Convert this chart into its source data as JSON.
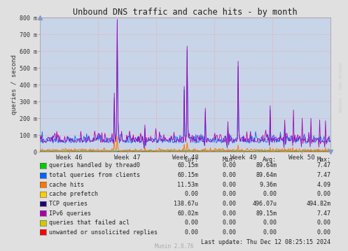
{
  "title": "Unbound DNS traffic and cache hits - by month",
  "ylabel": "queries / second",
  "background_color": "#e0e0e0",
  "plot_bg_color": "#c8d4e8",
  "grid_color": "#ff9999",
  "ylim": [
    0,
    800
  ],
  "yticks": [
    0,
    100,
    200,
    300,
    400,
    500,
    600,
    700,
    800
  ],
  "ytick_labels": [
    "0",
    "100 m",
    "200 m",
    "300 m",
    "400 m",
    "500 m",
    "600 m",
    "700 m",
    "800 m"
  ],
  "xtick_labels": [
    "Week 46",
    "Week 47",
    "Week 48",
    "Week 49",
    "Week 50"
  ],
  "watermark": "RRDTOOL / TOBI OETIKER",
  "munin_version": "Munin 2.0.76",
  "last_update": "Last update: Thu Dec 12 08:25:15 2024",
  "series_colors": [
    "#00cc00",
    "#0066ff",
    "#ff7700",
    "#ffcc00",
    "#220077",
    "#aa00aa",
    "#cccc00",
    "#ff0000"
  ],
  "series_names": [
    "queries handled by thread0",
    "total queries from clients",
    "cache hits",
    "cache prefetch",
    "TCP queries",
    "IPv6 queries",
    "queries that failed acl",
    "unwanted or unsolicited replies"
  ],
  "legend_cur": [
    "60.15m",
    "60.15m",
    "11.53m",
    "0.00",
    "138.67u",
    "60.02m",
    "0.00",
    "0.00"
  ],
  "legend_min": [
    "0.00",
    "0.00",
    "0.00",
    "0.00",
    "0.00",
    "0.00",
    "0.00",
    "0.00"
  ],
  "legend_avg": [
    "89.64m",
    "89.64m",
    "9.36m",
    "0.00",
    "496.07u",
    "89.15m",
    "0.00",
    "0.00"
  ],
  "legend_max": [
    "7.47",
    "7.47",
    "4.09",
    "0.00",
    "494.82m",
    "7.47",
    "0.00",
    "0.00"
  ]
}
